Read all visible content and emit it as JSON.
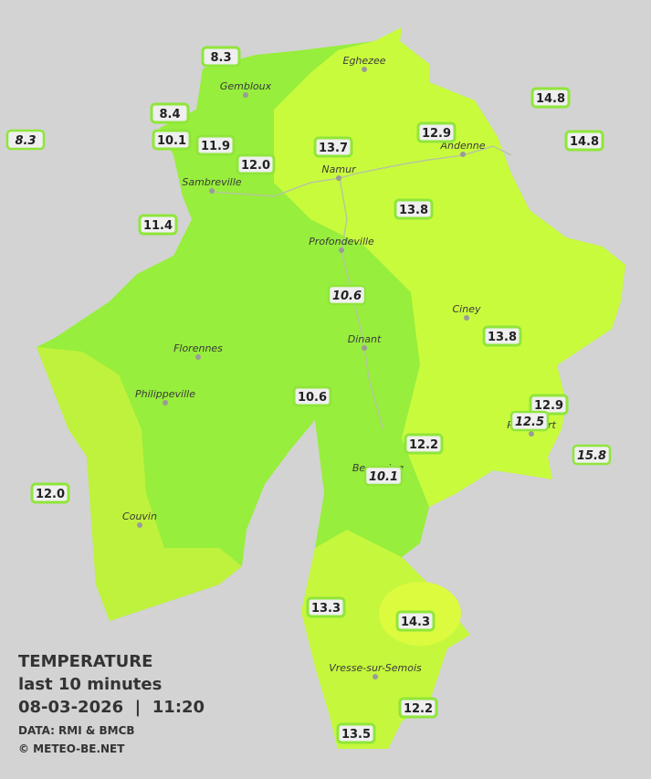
{
  "title": {
    "heading": "TEMPERATURE",
    "period": "last 10 minutes",
    "datetime": "08-03-2026  |  11:20",
    "source": "DATA: RMI & BMCB",
    "credit": "© METEO-BE.NET"
  },
  "cities": [
    {
      "name": "Eghezee"
    },
    {
      "name": "Gembloux"
    },
    {
      "name": "Andenne"
    },
    {
      "name": "Namur"
    },
    {
      "name": "Sambreville"
    },
    {
      "name": "Profondeville"
    },
    {
      "name": "Ciney"
    },
    {
      "name": "Dinant"
    },
    {
      "name": "Florennes"
    },
    {
      "name": "Philippeville"
    },
    {
      "name": "Rochefort"
    },
    {
      "name": "Beauraing"
    },
    {
      "name": "Couvin"
    },
    {
      "name": "Vresse-sur-Semois"
    }
  ],
  "readings": [
    "8.3",
    "8.4",
    "8.3",
    "10.1",
    "11.9",
    "12.0",
    "13.7",
    "12.9",
    "14.8",
    "14.8",
    "13.8",
    "11.4",
    "10.6",
    "13.8",
    "10.6",
    "12.9",
    "12.5",
    "12.2",
    "15.8",
    "10.1",
    "12.0",
    "13.3",
    "14.3",
    "12.2",
    "13.5"
  ]
}
